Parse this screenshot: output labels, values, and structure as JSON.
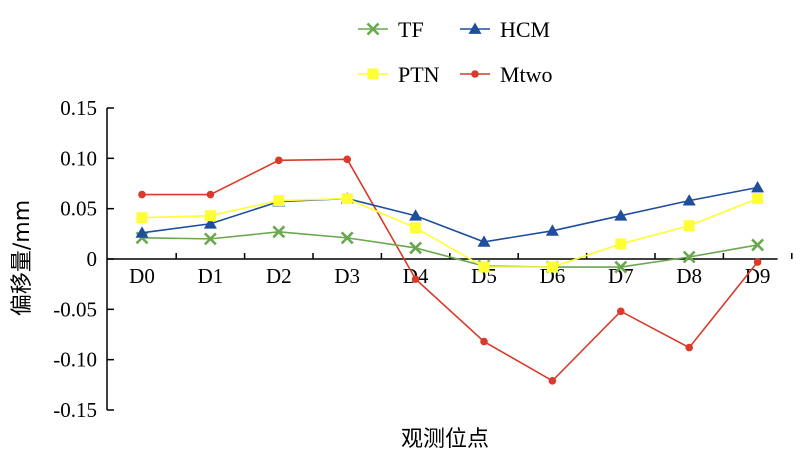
{
  "chart_data": {
    "type": "line",
    "categories": [
      "D0",
      "D1",
      "D2",
      "D3",
      "D4",
      "D5",
      "D6",
      "D7",
      "D8",
      "D9"
    ],
    "xlabel": "观测位点",
    "ylabel": "偏移量/mm",
    "ylim": [
      -0.15,
      0.15
    ],
    "yticks": [
      "0.15",
      "0.10",
      "0.05",
      "0",
      "-0.05",
      "-0.10",
      "-0.15"
    ],
    "ytick_values": [
      0.15,
      0.1,
      0.05,
      0,
      -0.05,
      -0.1,
      -0.15
    ],
    "grid": false,
    "legend_position": "top-right",
    "legend_order": [
      "TF",
      "HCM",
      "PTN",
      "Mtwo"
    ],
    "series": [
      {
        "name": "TF",
        "color": "#6aa84f",
        "marker": "x",
        "values": [
          0.021,
          0.02,
          0.027,
          0.021,
          0.011,
          -0.007,
          -0.008,
          -0.008,
          0.002,
          0.014
        ]
      },
      {
        "name": "HCM",
        "color": "#1f4e9c",
        "marker": "triangle",
        "values": [
          0.026,
          0.035,
          0.057,
          0.06,
          0.043,
          0.017,
          0.028,
          0.043,
          0.058,
          0.071
        ]
      },
      {
        "name": "PTN",
        "color": "#ffff33",
        "marker": "square",
        "values": [
          0.041,
          0.043,
          0.058,
          0.06,
          0.031,
          -0.008,
          -0.008,
          0.015,
          0.033,
          0.06
        ]
      },
      {
        "name": "Mtwo",
        "color": "#d93a2b",
        "marker": "circle",
        "values": [
          0.064,
          0.064,
          0.098,
          0.099,
          -0.02,
          -0.082,
          -0.121,
          -0.052,
          -0.088,
          -0.003
        ]
      }
    ]
  }
}
